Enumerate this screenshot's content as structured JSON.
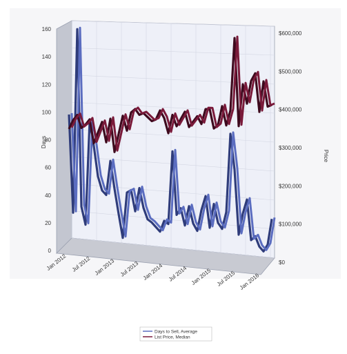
{
  "chart_data": {
    "type": "line",
    "title": "",
    "xlabel": "",
    "ylabel": "Days",
    "y2label": "Price",
    "ylim": [
      0,
      160
    ],
    "y2lim": [
      0,
      600000
    ],
    "x_tick_labels": [
      "Jan 2012",
      "Jul 2012",
      "Jan 2013",
      "Jul 2013",
      "Jan 2014",
      "Jul 2014",
      "Jan 2015",
      "Jul 2015",
      "Jan 2016"
    ],
    "y_tick_labels": [
      "0",
      "20",
      "40",
      "60",
      "80",
      "100",
      "120",
      "140",
      "160"
    ],
    "y2_tick_labels": [
      "$0",
      "$100,000",
      "$200,000",
      "$300,000",
      "$400,000",
      "$500,000",
      "$600,000"
    ],
    "x": [
      "2012-01",
      "2012-02",
      "2012-03",
      "2012-04",
      "2012-05",
      "2012-06",
      "2012-07",
      "2012-08",
      "2012-09",
      "2012-10",
      "2012-11",
      "2012-12",
      "2013-01",
      "2013-02",
      "2013-03",
      "2013-04",
      "2013-05",
      "2013-06",
      "2013-07",
      "2013-08",
      "2013-09",
      "2013-10",
      "2013-11",
      "2013-12",
      "2014-01",
      "2014-02",
      "2014-03",
      "2014-04",
      "2014-05",
      "2014-06",
      "2014-07",
      "2014-08",
      "2014-09",
      "2014-10",
      "2014-11",
      "2014-12",
      "2015-01",
      "2015-02",
      "2015-03",
      "2015-04",
      "2015-05",
      "2015-06",
      "2015-07",
      "2015-08",
      "2015-09",
      "2015-10",
      "2015-11",
      "2015-12",
      "2016-01",
      "2016-02"
    ],
    "series": [
      {
        "name": "Days to Sell, Average",
        "axis": "left",
        "color": "#5b6dc0",
        "values": [
          92,
          20,
          155,
          25,
          12,
          88,
          70,
          48,
          38,
          35,
          60,
          40,
          22,
          5,
          38,
          40,
          25,
          42,
          28,
          20,
          18,
          15,
          12,
          20,
          18,
          70,
          25,
          30,
          18,
          32,
          20,
          15,
          30,
          40,
          18,
          35,
          22,
          18,
          30,
          85,
          60,
          15,
          30,
          40,
          12,
          15,
          8,
          5,
          10,
          28
        ]
      },
      {
        "name": "List Price, Median",
        "axis": "right",
        "color": "#7a1a3a",
        "values": [
          305000,
          330000,
          345000,
          310000,
          320000,
          335000,
          270000,
          300000,
          330000,
          275000,
          340000,
          250000,
          300000,
          350000,
          310000,
          360000,
          370000,
          355000,
          360000,
          350000,
          340000,
          345000,
          370000,
          350000,
          310000,
          360000,
          330000,
          350000,
          370000,
          330000,
          345000,
          360000,
          340000,
          380000,
          380000,
          330000,
          340000,
          390000,
          340000,
          380000,
          570000,
          340000,
          450000,
          400000,
          460000,
          480000,
          380000,
          460000,
          395000,
          400000
        ]
      }
    ],
    "grid": true,
    "legend_position": "bottom-center"
  }
}
